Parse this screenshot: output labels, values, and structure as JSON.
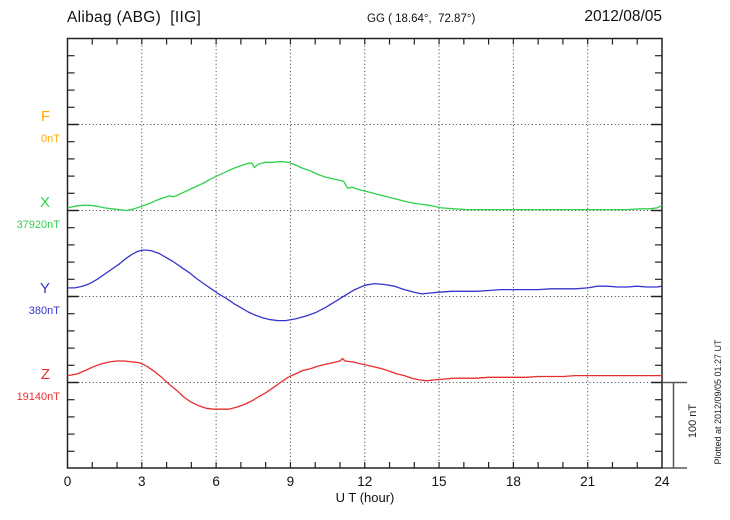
{
  "header": {
    "station_title": "Alibag (ABG)  [IIG]",
    "gg_coordinates": "GG ( 18.64°,  72.87°)",
    "date": "2012/08/05"
  },
  "x_axis": {
    "label": "U T (hour)",
    "tick_labels": [
      "0",
      "3",
      "6",
      "9",
      "12",
      "15",
      "18",
      "21",
      "24"
    ],
    "hours_per_labeled_tick": 3,
    "range": [
      0,
      24
    ]
  },
  "scale_bar": {
    "label": "100 nT",
    "value_nT": 100
  },
  "footer_note": "Plotted at 2012/09/05 01:27 UT",
  "colors": {
    "F": "#ffaa00",
    "X": "#2fd24a",
    "Y": "#3535cc",
    "Z": "#e82f2f",
    "axis": "#222222",
    "grid": "#3a3a3a",
    "scalebar": "#555555"
  },
  "chart_data": {
    "type": "line",
    "title": "Alibag (ABG) [IIG] magnetogram for 2012/08/05",
    "xlabel": "U T (hour)",
    "x_range": [
      0,
      24
    ],
    "grid": "dotted vertical lines every 3 hours; dotted horizontal baseline per component",
    "legend_position": "left margin (component letters with baseline values)",
    "y_scale_note": "offsets in nT from each component baseline; baseline spacing = 100 nT",
    "series": [
      {
        "name": "F",
        "baseline_label": "0nT",
        "color": "#ffaa00",
        "points": []
      },
      {
        "name": "X",
        "baseline_label": "37920nT",
        "color": "#2fd24a",
        "points": [
          [
            0,
            3
          ],
          [
            0.3,
            5
          ],
          [
            0.6,
            6
          ],
          [
            0.9,
            6
          ],
          [
            1.2,
            5
          ],
          [
            1.5,
            3
          ],
          [
            1.8,
            2
          ],
          [
            2.1,
            1
          ],
          [
            2.4,
            0
          ],
          [
            2.7,
            2
          ],
          [
            3,
            5
          ],
          [
            3.3,
            8
          ],
          [
            3.6,
            12
          ],
          [
            3.9,
            15
          ],
          [
            4.1,
            17
          ],
          [
            4.3,
            16
          ],
          [
            4.6,
            20
          ],
          [
            4.9,
            24
          ],
          [
            5.2,
            28
          ],
          [
            5.5,
            32
          ],
          [
            5.8,
            37
          ],
          [
            6.1,
            41
          ],
          [
            6.4,
            45
          ],
          [
            6.7,
            49
          ],
          [
            7,
            52
          ],
          [
            7.3,
            55
          ],
          [
            7.45,
            55
          ],
          [
            7.55,
            50
          ],
          [
            7.7,
            54
          ],
          [
            8,
            56
          ],
          [
            8.3,
            56
          ],
          [
            8.6,
            57
          ],
          [
            8.9,
            56
          ],
          [
            9.2,
            53
          ],
          [
            9.5,
            49
          ],
          [
            9.8,
            46
          ],
          [
            10.1,
            42
          ],
          [
            10.4,
            39
          ],
          [
            10.7,
            37
          ],
          [
            11,
            35
          ],
          [
            11.15,
            34
          ],
          [
            11.3,
            26
          ],
          [
            11.5,
            27
          ],
          [
            11.8,
            24
          ],
          [
            12.1,
            22
          ],
          [
            12.5,
            19
          ],
          [
            12.9,
            16
          ],
          [
            13.3,
            13
          ],
          [
            13.7,
            10
          ],
          [
            14.1,
            8
          ],
          [
            14.6,
            6
          ],
          [
            15.1,
            3
          ],
          [
            15.6,
            2
          ],
          [
            16.1,
            1
          ],
          [
            16.6,
            1
          ],
          [
            17.1,
            1
          ],
          [
            17.6,
            1
          ],
          [
            18.1,
            1
          ],
          [
            18.6,
            1
          ],
          [
            19.1,
            1
          ],
          [
            19.6,
            1
          ],
          [
            20.1,
            1
          ],
          [
            20.6,
            1
          ],
          [
            21.1,
            1
          ],
          [
            21.6,
            1
          ],
          [
            22.1,
            1
          ],
          [
            22.6,
            1
          ],
          [
            23.1,
            2
          ],
          [
            23.5,
            2
          ],
          [
            23.8,
            3
          ],
          [
            24,
            6
          ]
        ]
      },
      {
        "name": "Y",
        "baseline_label": "380nT",
        "color": "#3535cc",
        "points": [
          [
            0,
            10
          ],
          [
            0.3,
            10
          ],
          [
            0.6,
            12
          ],
          [
            0.9,
            15
          ],
          [
            1.2,
            20
          ],
          [
            1.5,
            26
          ],
          [
            1.8,
            32
          ],
          [
            2.1,
            38
          ],
          [
            2.4,
            45
          ],
          [
            2.6,
            49
          ],
          [
            2.8,
            52
          ],
          [
            3,
            54
          ],
          [
            3.2,
            54
          ],
          [
            3.4,
            53
          ],
          [
            3.7,
            50
          ],
          [
            4,
            45
          ],
          [
            4.3,
            40
          ],
          [
            4.6,
            34
          ],
          [
            4.9,
            28
          ],
          [
            5.2,
            21
          ],
          [
            5.5,
            15
          ],
          [
            5.8,
            9
          ],
          [
            6.1,
            3
          ],
          [
            6.4,
            -2
          ],
          [
            6.7,
            -8
          ],
          [
            7,
            -13
          ],
          [
            7.3,
            -18
          ],
          [
            7.6,
            -22
          ],
          [
            7.9,
            -25
          ],
          [
            8.2,
            -27
          ],
          [
            8.5,
            -28
          ],
          [
            8.8,
            -28
          ],
          [
            9.2,
            -26
          ],
          [
            9.6,
            -23
          ],
          [
            10,
            -19
          ],
          [
            10.4,
            -13
          ],
          [
            10.8,
            -6
          ],
          [
            11.2,
            1
          ],
          [
            11.6,
            8
          ],
          [
            12,
            13
          ],
          [
            12.4,
            15
          ],
          [
            12.8,
            14
          ],
          [
            13.2,
            12
          ],
          [
            13.6,
            8
          ],
          [
            14,
            5
          ],
          [
            14.3,
            3
          ],
          [
            14.6,
            4
          ],
          [
            15,
            5
          ],
          [
            15.5,
            6
          ],
          [
            16,
            6
          ],
          [
            16.5,
            6
          ],
          [
            17,
            7
          ],
          [
            17.5,
            8
          ],
          [
            18,
            8
          ],
          [
            18.5,
            8
          ],
          [
            19,
            8
          ],
          [
            19.5,
            9
          ],
          [
            20,
            9
          ],
          [
            20.5,
            9
          ],
          [
            21,
            10
          ],
          [
            21.4,
            12
          ],
          [
            21.8,
            12
          ],
          [
            22.2,
            11
          ],
          [
            22.6,
            11
          ],
          [
            23,
            12
          ],
          [
            23.4,
            11
          ],
          [
            23.8,
            11
          ],
          [
            24,
            12
          ]
        ]
      },
      {
        "name": "Z",
        "baseline_label": "19140nT",
        "color": "#e82f2f",
        "points": [
          [
            0,
            8
          ],
          [
            0.4,
            10
          ],
          [
            0.8,
            15
          ],
          [
            1.1,
            19
          ],
          [
            1.4,
            22
          ],
          [
            1.7,
            24
          ],
          [
            2,
            25
          ],
          [
            2.3,
            25
          ],
          [
            2.6,
            24
          ],
          [
            2.9,
            23
          ],
          [
            3.2,
            19
          ],
          [
            3.5,
            13
          ],
          [
            3.8,
            6
          ],
          [
            4.1,
            -2
          ],
          [
            4.4,
            -9
          ],
          [
            4.7,
            -17
          ],
          [
            5,
            -23
          ],
          [
            5.3,
            -27
          ],
          [
            5.6,
            -30
          ],
          [
            5.9,
            -31
          ],
          [
            6.2,
            -31
          ],
          [
            6.5,
            -31
          ],
          [
            6.8,
            -29
          ],
          [
            7.1,
            -26
          ],
          [
            7.4,
            -22
          ],
          [
            7.7,
            -17
          ],
          [
            8,
            -12
          ],
          [
            8.3,
            -6
          ],
          [
            8.6,
            0
          ],
          [
            8.9,
            6
          ],
          [
            9.2,
            10
          ],
          [
            9.5,
            14
          ],
          [
            9.8,
            16
          ],
          [
            10.1,
            19
          ],
          [
            10.4,
            21
          ],
          [
            10.7,
            23
          ],
          [
            11,
            25
          ],
          [
            11.1,
            28
          ],
          [
            11.2,
            25
          ],
          [
            11.5,
            24
          ],
          [
            11.8,
            22
          ],
          [
            12.1,
            20
          ],
          [
            12.4,
            18
          ],
          [
            12.7,
            16
          ],
          [
            13,
            13
          ],
          [
            13.3,
            10
          ],
          [
            13.6,
            8
          ],
          [
            13.9,
            5
          ],
          [
            14.2,
            3
          ],
          [
            14.5,
            2
          ],
          [
            14.8,
            3
          ],
          [
            15.2,
            4
          ],
          [
            15.6,
            5
          ],
          [
            16,
            5
          ],
          [
            16.5,
            5
          ],
          [
            17,
            6
          ],
          [
            17.5,
            6
          ],
          [
            18,
            6
          ],
          [
            18.5,
            6
          ],
          [
            19,
            7
          ],
          [
            19.5,
            7
          ],
          [
            20,
            7
          ],
          [
            20.5,
            8
          ],
          [
            21,
            8
          ],
          [
            21.5,
            8
          ],
          [
            22,
            8
          ],
          [
            22.5,
            8
          ],
          [
            23,
            8
          ],
          [
            23.5,
            8
          ],
          [
            24,
            8
          ]
        ]
      }
    ]
  }
}
